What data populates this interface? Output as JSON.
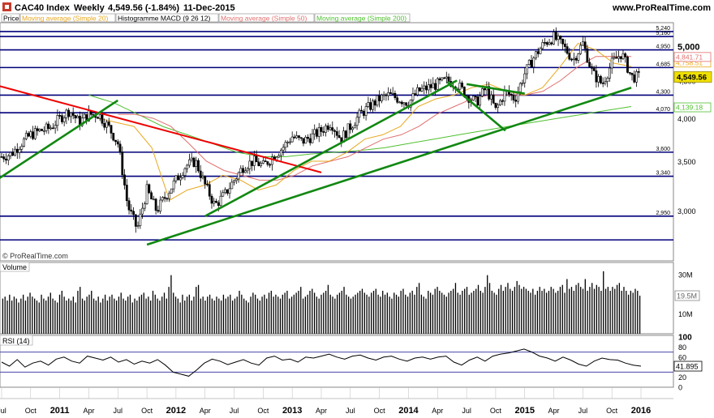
{
  "header": {
    "instrument": "CAC40 Index",
    "timeframe": "Weekly",
    "quote": "4,549.56 (-1.84%)",
    "date": "11-Dec-2015",
    "site": "www.ProRealTime.com"
  },
  "legend": [
    {
      "label": "Price",
      "color": "#000000"
    },
    {
      "label": "Moving average (Simple 20)",
      "color": "#e8a820"
    },
    {
      "label": "Histogramme MACD (9 26 12)",
      "color": "#000000"
    },
    {
      "label": "Moving average (Simple 50)",
      "color": "#e07070"
    },
    {
      "label": "Moving average (Simple 200)",
      "color": "#50c030"
    }
  ],
  "watermark": "© ProRealTime.com",
  "colors": {
    "candles": "#000000",
    "horizontal_levels": "#00007a",
    "downtrend": "#ee0000",
    "uptrend": "#118811",
    "ma20": "#e8a820",
    "ma50": "#e07070",
    "ma200": "#50c030",
    "rsi": "#000000",
    "rsi_bands": "#4444aa",
    "price_tag": "#f0e000"
  },
  "chart_data": [
    {
      "type": "candlestick",
      "panel": "price",
      "x_ticks": [
        "Jul",
        "Oct",
        "2011",
        "Apr",
        "Jul",
        "Oct",
        "2012",
        "Apr",
        "Jul",
        "Oct",
        "2013",
        "Apr",
        "Jul",
        "Oct",
        "2014",
        "Apr",
        "Jul",
        "Oct",
        "2015",
        "Apr",
        "Jul",
        "Oct",
        "2016"
      ],
      "x_ticks_bold": [
        "2011",
        "2012",
        "2013",
        "2014",
        "2015",
        "2016"
      ],
      "y_ticks": [
        "5,000",
        "4,500",
        "4,000",
        "3,500",
        "3,000"
      ],
      "y_range": [
        2580,
        5360
      ],
      "y_scale": "log",
      "levels": [
        {
          "value": 5240,
          "label": "5,240"
        },
        {
          "value": 5160,
          "label": "5,160"
        },
        {
          "value": 4950,
          "label": "4,950"
        },
        {
          "value": 4685,
          "label": "4,685"
        },
        {
          "value": 4300,
          "label": "4,300"
        },
        {
          "value": 4070,
          "label": "4,070"
        },
        {
          "value": 3600,
          "label": "3,600"
        },
        {
          "value": 3340,
          "label": "3,340"
        },
        {
          "value": 2950,
          "label": "2,950"
        },
        {
          "value": 2740,
          "label": ""
        }
      ],
      "close_series": [
        {
          "date": "2010-07",
          "close": 3550
        },
        {
          "date": "2010-08",
          "close": 3580
        },
        {
          "date": "2010-09",
          "close": 3700
        },
        {
          "date": "2010-10",
          "close": 3800
        },
        {
          "date": "2010-11",
          "close": 3850
        },
        {
          "date": "2010-12",
          "close": 3880
        },
        {
          "date": "2011-01",
          "close": 4000
        },
        {
          "date": "2011-02",
          "close": 4100
        },
        {
          "date": "2011-03",
          "close": 3950
        },
        {
          "date": "2011-04",
          "close": 4050
        },
        {
          "date": "2011-05",
          "close": 4050
        },
        {
          "date": "2011-06",
          "close": 3900
        },
        {
          "date": "2011-07",
          "close": 3700
        },
        {
          "date": "2011-08",
          "close": 3050
        },
        {
          "date": "2011-09",
          "close": 2830
        },
        {
          "date": "2011-10",
          "close": 3200
        },
        {
          "date": "2011-11",
          "close": 3000
        },
        {
          "date": "2011-12",
          "close": 3150
        },
        {
          "date": "2012-01",
          "close": 3300
        },
        {
          "date": "2012-02",
          "close": 3450
        },
        {
          "date": "2012-03",
          "close": 3500
        },
        {
          "date": "2012-04",
          "close": 3250
        },
        {
          "date": "2012-05",
          "close": 3050
        },
        {
          "date": "2012-06",
          "close": 3150
        },
        {
          "date": "2012-07",
          "close": 3300
        },
        {
          "date": "2012-08",
          "close": 3450
        },
        {
          "date": "2012-09",
          "close": 3500
        },
        {
          "date": "2012-10",
          "close": 3450
        },
        {
          "date": "2012-11",
          "close": 3550
        },
        {
          "date": "2012-12",
          "close": 3650
        },
        {
          "date": "2013-01",
          "close": 3780
        },
        {
          "date": "2013-02",
          "close": 3720
        },
        {
          "date": "2013-03",
          "close": 3780
        },
        {
          "date": "2013-04",
          "close": 3850
        },
        {
          "date": "2013-05",
          "close": 3950
        },
        {
          "date": "2013-06",
          "close": 3750
        },
        {
          "date": "2013-07",
          "close": 3900
        },
        {
          "date": "2013-08",
          "close": 4050
        },
        {
          "date": "2013-09",
          "close": 4150
        },
        {
          "date": "2013-10",
          "close": 4250
        },
        {
          "date": "2013-11",
          "close": 4300
        },
        {
          "date": "2013-12",
          "close": 4250
        },
        {
          "date": "2014-01",
          "close": 4200
        },
        {
          "date": "2014-02",
          "close": 4350
        },
        {
          "date": "2014-03",
          "close": 4400
        },
        {
          "date": "2014-04",
          "close": 4450
        },
        {
          "date": "2014-05",
          "close": 4500
        },
        {
          "date": "2014-06",
          "close": 4450
        },
        {
          "date": "2014-07",
          "close": 4300
        },
        {
          "date": "2014-08",
          "close": 4200
        },
        {
          "date": "2014-09",
          "close": 4400
        },
        {
          "date": "2014-10",
          "close": 4100
        },
        {
          "date": "2014-11",
          "close": 4350
        },
        {
          "date": "2014-12",
          "close": 4250
        },
        {
          "date": "2015-01",
          "close": 4600
        },
        {
          "date": "2015-02",
          "close": 4850
        },
        {
          "date": "2015-03",
          "close": 5050
        },
        {
          "date": "2015-04",
          "close": 5150
        },
        {
          "date": "2015-05",
          "close": 5000
        },
        {
          "date": "2015-06",
          "close": 4800
        },
        {
          "date": "2015-07",
          "close": 5050
        },
        {
          "date": "2015-08",
          "close": 4600
        },
        {
          "date": "2015-09",
          "close": 4450
        },
        {
          "date": "2015-10",
          "close": 4750
        },
        {
          "date": "2015-11",
          "close": 4900
        },
        {
          "date": "2015-12",
          "close": 4550
        }
      ],
      "last_value": "4,549.56",
      "right_tags": [
        {
          "series": "Moving average (Simple 20)",
          "value": "4,758.51"
        },
        {
          "series": "Moving average (Simple 50)",
          "value": "4,841.71"
        },
        {
          "series": "Moving average (Simple 200)",
          "value": "4,139.18"
        }
      ],
      "trendlines": [
        {
          "color": "red",
          "from": {
            "date": "2010-06",
            "value": 4450
          },
          "to": {
            "date": "2013-04",
            "value": 3380
          }
        },
        {
          "color": "green",
          "from": {
            "date": "2010-06",
            "value": 3270
          },
          "to": {
            "date": "2011-07",
            "value": 4230
          }
        },
        {
          "color": "green",
          "from": {
            "date": "2012-04",
            "value": 2950
          },
          "to": {
            "date": "2014-06",
            "value": 4500
          }
        },
        {
          "color": "green",
          "from": {
            "date": "2011-10",
            "value": 2700
          },
          "to": {
            "date": "2015-12",
            "value": 4400
          }
        },
        {
          "color": "green",
          "from": {
            "date": "2014-05",
            "value": 4480
          },
          "to": {
            "date": "2014-11",
            "value": 3850
          }
        },
        {
          "color": "green",
          "from": {
            "date": "2014-07",
            "value": 4450
          },
          "to": {
            "date": "2015-01",
            "value": 4320
          }
        }
      ],
      "ma20": [
        4000,
        3950,
        3900,
        3650,
        3100,
        3200,
        3250,
        3350,
        3300,
        3200,
        3250,
        3400,
        3500,
        3500,
        3600,
        3750,
        3800,
        3900,
        4150,
        4250,
        4300,
        4400,
        4450,
        4350,
        4300,
        4400,
        4700,
        5050,
        4950,
        4750,
        4700
      ],
      "ma50": [
        4050,
        4050,
        4000,
        3900,
        3700,
        3500,
        3400,
        3350,
        3300,
        3300,
        3350,
        3450,
        3500,
        3550,
        3650,
        3750,
        3800,
        3900,
        4050,
        4150,
        4250,
        4300,
        4300,
        4300,
        4350,
        4500,
        4700,
        4850,
        4850,
        4850
      ],
      "ma200": [
        4300,
        4200,
        4050,
        3900,
        3800,
        3700,
        3600,
        3550,
        3550,
        3580,
        3600,
        3620,
        3650,
        3700,
        3750,
        3800,
        3850,
        3900,
        3950,
        4000,
        4050,
        4100,
        4150
      ],
      "grid": false
    },
    {
      "type": "bar",
      "panel": "volume",
      "label": "Volume",
      "y_ticks": [
        "30M",
        "10M"
      ],
      "y_range": [
        0,
        34
      ],
      "unit": "M",
      "current_value": "19.5M",
      "values": [
        18,
        19,
        17,
        20,
        17,
        19,
        18,
        16,
        18,
        20,
        17,
        19,
        21,
        19,
        18,
        17,
        16,
        20,
        18,
        17,
        19,
        21,
        18,
        17,
        16,
        20,
        22,
        19,
        17,
        18,
        17,
        19,
        16,
        22,
        24,
        18,
        17,
        19,
        20,
        22,
        18,
        17,
        19,
        16,
        18,
        20,
        17,
        19,
        20,
        18,
        17,
        19,
        21,
        18,
        17,
        19,
        20,
        16,
        18,
        17,
        19,
        20,
        21,
        18,
        19,
        17,
        22,
        20,
        18,
        17,
        19,
        21,
        18,
        24,
        30,
        21,
        19,
        18,
        16,
        20,
        17,
        19,
        20,
        17,
        19,
        24,
        25,
        18,
        19,
        17,
        19,
        20,
        18,
        17,
        19,
        18,
        17,
        20,
        18,
        19,
        20,
        17,
        18,
        19,
        22,
        20,
        18,
        17,
        16,
        19,
        21,
        20,
        18,
        17,
        19,
        20,
        18,
        21,
        22,
        19,
        20,
        19,
        18,
        20,
        21,
        22,
        18,
        19,
        20,
        21,
        22,
        24,
        18,
        19,
        20,
        22,
        23,
        21,
        19,
        18,
        20,
        21,
        22,
        25,
        20,
        19,
        18,
        20,
        21,
        22,
        24,
        20,
        19,
        18,
        19,
        20,
        21,
        22,
        23,
        21,
        20,
        19,
        21,
        22,
        23,
        20,
        19,
        22,
        20,
        21,
        19,
        18,
        21,
        20,
        19,
        22,
        23,
        20,
        19,
        21,
        22,
        20,
        24,
        26,
        20,
        19,
        18,
        22,
        21,
        20,
        23,
        24,
        22,
        21,
        20,
        19,
        21,
        22,
        23,
        26,
        21,
        20,
        22,
        23,
        24,
        20,
        21,
        22,
        23,
        25,
        22,
        21,
        24,
        30,
        26,
        22,
        21,
        20,
        23,
        25,
        22,
        24,
        26,
        23,
        22,
        24,
        27,
        25,
        23,
        24,
        23,
        22,
        21,
        23,
        20,
        22,
        24,
        22,
        23,
        21,
        22,
        24,
        23,
        21,
        22,
        24,
        25,
        21,
        28,
        23,
        24,
        22,
        25,
        26,
        24,
        23,
        28,
        22,
        24,
        26,
        23,
        25,
        24,
        22,
        32,
        23,
        24,
        22,
        24,
        23,
        25,
        26,
        22,
        24,
        22,
        20,
        22,
        21,
        23,
        22,
        19.5
      ]
    },
    {
      "type": "line",
      "panel": "rsi",
      "label": "RSI (14)",
      "y_ticks": [
        "100",
        "80",
        "60",
        "40",
        "20",
        "0"
      ],
      "y_range": [
        0,
        100
      ],
      "bands": [
        70,
        30
      ],
      "current_value": "41.895",
      "values": [
        50,
        42,
        55,
        40,
        48,
        52,
        44,
        56,
        60,
        52,
        48,
        62,
        58,
        54,
        60,
        50,
        55,
        46,
        52,
        48,
        55,
        44,
        30,
        26,
        22,
        34,
        48,
        56,
        52,
        45,
        50,
        55,
        48,
        44,
        58,
        62,
        54,
        56,
        50,
        60,
        58,
        62,
        66,
        60,
        56,
        62,
        64,
        58,
        54,
        60,
        62,
        56,
        52,
        58,
        60,
        56,
        60,
        62,
        50,
        44,
        54,
        60,
        52,
        62,
        66,
        68,
        72,
        76,
        70,
        62,
        58,
        52,
        60,
        54,
        46,
        42,
        52,
        58,
        55,
        54,
        48,
        44,
        41.9
      ]
    }
  ]
}
